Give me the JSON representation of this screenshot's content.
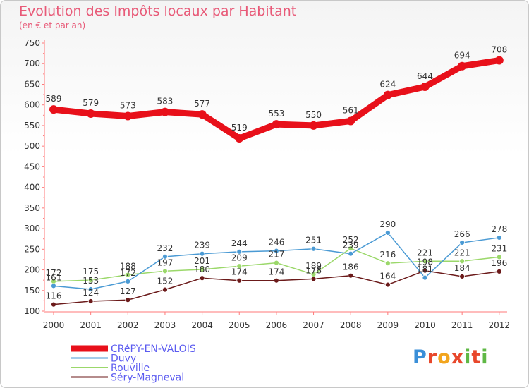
{
  "title": "Evolution des Impôts locaux par Habitant",
  "subtitle": "(en € et par an)",
  "logo": {
    "text": "Proxiti",
    "letters": [
      "P",
      "r",
      "o",
      "x",
      "i",
      "t",
      "i"
    ],
    "colors": [
      "#3a8fd8",
      "#e8472b",
      "#f2a51e",
      "#e8472b",
      "#5fb845",
      "#e8472b",
      "#5fb845"
    ]
  },
  "chart_data": {
    "type": "line",
    "x": [
      "2000",
      "2001",
      "2002",
      "2003",
      "2004",
      "2005",
      "2006",
      "2007",
      "2008",
      "2009",
      "2010",
      "2011",
      "2012"
    ],
    "ylim": [
      100,
      750
    ],
    "yticks": [
      "100",
      "150",
      "200",
      "250",
      "300",
      "350",
      "400",
      "450",
      "500",
      "550",
      "600",
      "650",
      "700",
      "750"
    ],
    "grid": false,
    "legend_position": "bottom-left",
    "series": [
      {
        "name": "CRéPY-EN-VALOIS",
        "color": "#e8101a",
        "label_color": "#5c5cf0",
        "values": [
          589,
          579,
          573,
          583,
          577,
          519,
          553,
          550,
          561,
          624,
          644,
          694,
          708
        ],
        "labels": [
          "589",
          "579",
          "573",
          "583",
          "577",
          "519",
          "553",
          "550",
          "561",
          "624",
          "644",
          "694",
          "708"
        ]
      },
      {
        "name": "Duvy",
        "color": "#4a9ad4",
        "label_color": "#5c5cf0",
        "values": [
          161,
          153,
          172,
          232,
          239,
          244,
          246,
          251,
          239,
          290,
          181,
          266,
          278
        ],
        "labels": [
          "161",
          "153",
          "172",
          "232",
          "239",
          "244",
          "246",
          "251",
          "239",
          "290",
          "181",
          "266",
          "278"
        ]
      },
      {
        "name": "Rouville",
        "color": "#9bd86a",
        "label_color": "#5c5cf0",
        "values": [
          172,
          175,
          188,
          197,
          201,
          209,
          217,
          189,
          252,
          216,
          221,
          221,
          231
        ],
        "labels": [
          "172",
          "175",
          "188",
          "197",
          "201",
          "209",
          "217",
          "189",
          "252",
          "216",
          "221",
          "221",
          "231"
        ]
      },
      {
        "name": "Séry-Magneval",
        "color": "#6b1a1a",
        "label_color": "#5c5cf0",
        "values": [
          116,
          124,
          127,
          152,
          180,
          174,
          174,
          178,
          186,
          164,
          198,
          184,
          196
        ],
        "labels": [
          "116",
          "124",
          "127",
          "152",
          "180",
          "174",
          "174",
          "178",
          "186",
          "164",
          "198",
          "184",
          "196"
        ]
      }
    ]
  }
}
